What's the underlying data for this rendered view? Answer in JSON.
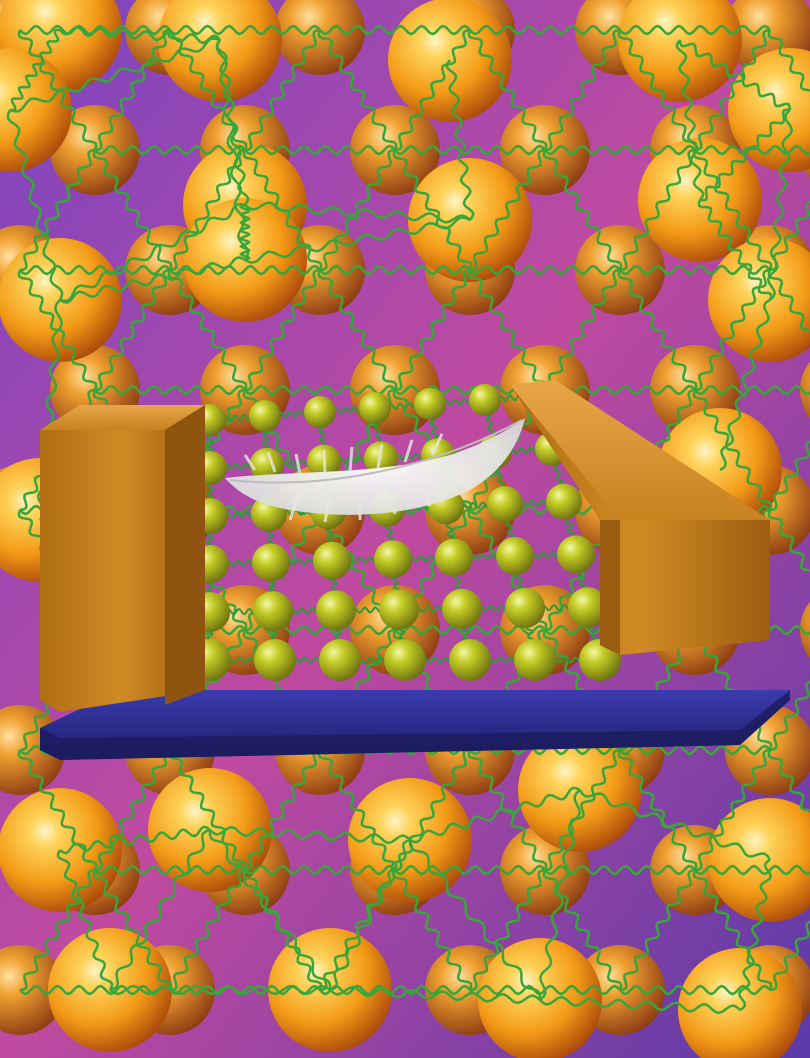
{
  "scene": {
    "description_name": "nanoparticle-lattice-device",
    "colors": {
      "background": "#6a3fb0",
      "background_sphere": "#f7a21c",
      "sphere_highlight": "#ffe9a8",
      "sphere_shadow": "#b4520d",
      "spring": "#3aa53a",
      "electrode": "#c9851f",
      "substrate": "#2a2a8c",
      "nanoparticle": "#b8c21a",
      "feather": "#f2f2f2"
    },
    "device": {
      "lattice_rows": 6,
      "lattice_cols": 7
    }
  }
}
